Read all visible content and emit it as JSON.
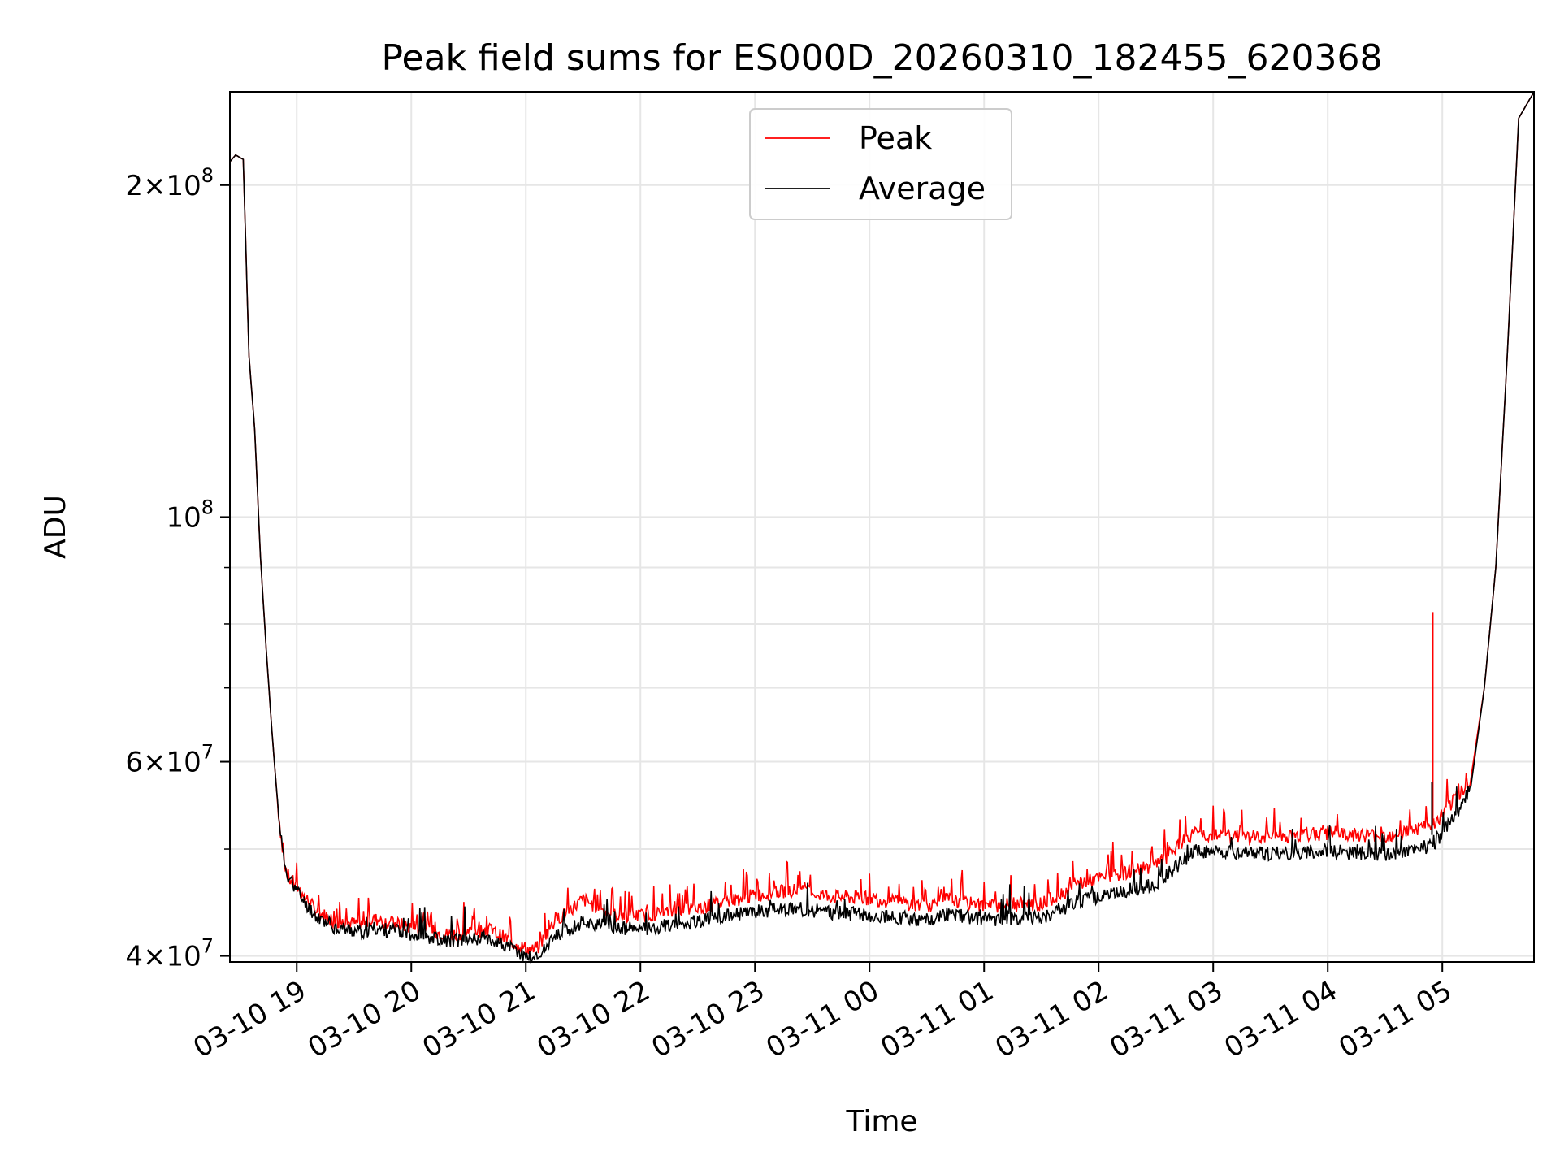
{
  "chart_data": {
    "type": "line",
    "title": "Peak field sums for ES000D_20260310_182455_620368",
    "xlabel": "Time",
    "ylabel": "ADU",
    "yscale": "log",
    "ylim": [
      39500000,
      243000000
    ],
    "xlim": [
      "2026-03-10 18:25",
      "2026-03-11 05:48"
    ],
    "grid": true,
    "legend_position": "top-center",
    "x_ticks": [
      "03-10 19",
      "03-10 20",
      "03-10 21",
      "03-10 22",
      "03-10 23",
      "03-11 00",
      "03-11 01",
      "03-11 02",
      "03-11 03",
      "03-11 04",
      "03-11 05"
    ],
    "y_ticks": [
      {
        "value": 40000000,
        "label": "4×10",
        "exp": "7"
      },
      {
        "value": 60000000,
        "label": "6×10",
        "exp": "7"
      },
      {
        "value": 100000000,
        "label": "10",
        "exp": "8"
      },
      {
        "value": 200000000,
        "label": "2×10",
        "exp": "8"
      }
    ],
    "y_minor_ticks": [
      50000000,
      70000000,
      80000000,
      90000000
    ],
    "colors": {
      "peak": "#ff0000",
      "average": "#000000",
      "grid": "#e6e6e6"
    },
    "series": [
      {
        "name": "Peak",
        "color": "#ff0000",
        "x": [
          "2026-03-10 18:25",
          "2026-03-10 18:28",
          "2026-03-10 18:32",
          "2026-03-10 18:35",
          "2026-03-10 18:38",
          "2026-03-10 18:41",
          "2026-03-10 18:44",
          "2026-03-10 18:47",
          "2026-03-10 18:50",
          "2026-03-10 18:53",
          "2026-03-10 18:56",
          "2026-03-10 18:59",
          "2026-03-10 19:03",
          "2026-03-10 19:10",
          "2026-03-10 19:20",
          "2026-03-10 19:35",
          "2026-03-10 19:40",
          "2026-03-10 20:00",
          "2026-03-10 20:20",
          "2026-03-10 20:40",
          "2026-03-10 21:00",
          "2026-03-10 21:05",
          "2026-03-10 21:15",
          "2026-03-10 21:30",
          "2026-03-10 21:45",
          "2026-03-10 22:00",
          "2026-03-10 22:30",
          "2026-03-10 23:00",
          "2026-03-10 23:20",
          "2026-03-10 23:40",
          "2026-03-11 00:00",
          "2026-03-11 00:30",
          "2026-03-11 00:40",
          "2026-03-11 01:00",
          "2026-03-11 01:30",
          "2026-03-11 01:50",
          "2026-03-11 02:00",
          "2026-03-11 02:30",
          "2026-03-11 02:50",
          "2026-03-11 03:00",
          "2026-03-11 03:30",
          "2026-03-11 04:00",
          "2026-03-11 04:30",
          "2026-03-11 04:55",
          "2026-03-11 05:05",
          "2026-03-11 05:15",
          "2026-03-11 05:22",
          "2026-03-11 05:28",
          "2026-03-11 05:34",
          "2026-03-11 05:40",
          "2026-03-11 05:48"
        ],
        "values": [
          210000000,
          213000000,
          211000000,
          140000000,
          120000000,
          92000000,
          76000000,
          64000000,
          55000000,
          49000000,
          47000000,
          46500000,
          45500000,
          44000000,
          43000000,
          42700000,
          43200000,
          42500000,
          41800000,
          42300000,
          40600000,
          40400000,
          43000000,
          45000000,
          43600000,
          43500000,
          44200000,
          45400000,
          45900000,
          45300000,
          45100000,
          44400000,
          45000000,
          44400000,
          44600000,
          46500000,
          47000000,
          48300000,
          51700000,
          51400000,
          51200000,
          51700000,
          51400000,
          52500000,
          55000000,
          58000000,
          70000000,
          90000000,
          140000000,
          230000000,
          243000000
        ]
      },
      {
        "name": "Average",
        "color": "#000000",
        "x": [
          "2026-03-10 18:25",
          "2026-03-10 18:28",
          "2026-03-10 18:32",
          "2026-03-10 18:35",
          "2026-03-10 18:38",
          "2026-03-10 18:41",
          "2026-03-10 18:44",
          "2026-03-10 18:47",
          "2026-03-10 18:50",
          "2026-03-10 18:53",
          "2026-03-10 18:56",
          "2026-03-10 18:59",
          "2026-03-10 19:03",
          "2026-03-10 19:10",
          "2026-03-10 19:20",
          "2026-03-10 19:35",
          "2026-03-10 19:40",
          "2026-03-10 20:00",
          "2026-03-10 20:20",
          "2026-03-10 20:40",
          "2026-03-10 21:00",
          "2026-03-10 21:05",
          "2026-03-10 21:15",
          "2026-03-10 21:30",
          "2026-03-10 21:45",
          "2026-03-10 22:00",
          "2026-03-10 22:30",
          "2026-03-10 23:00",
          "2026-03-10 23:20",
          "2026-03-10 23:40",
          "2026-03-11 00:00",
          "2026-03-11 00:30",
          "2026-03-11 00:40",
          "2026-03-11 01:00",
          "2026-03-11 01:30",
          "2026-03-11 01:50",
          "2026-03-11 02:00",
          "2026-03-11 02:30",
          "2026-03-11 02:50",
          "2026-03-11 03:00",
          "2026-03-11 03:30",
          "2026-03-11 04:00",
          "2026-03-11 04:30",
          "2026-03-11 04:55",
          "2026-03-11 05:05",
          "2026-03-11 05:15",
          "2026-03-11 05:22",
          "2026-03-11 05:28",
          "2026-03-11 05:34",
          "2026-03-11 05:40",
          "2026-03-11 05:48"
        ],
        "values": [
          210000000,
          213000000,
          211000000,
          140000000,
          120000000,
          92000000,
          76000000,
          64000000,
          55000000,
          49000000,
          47000000,
          46200000,
          45000000,
          43500000,
          42500000,
          42000000,
          42400000,
          41900000,
          41300000,
          41600000,
          40000000,
          39800000,
          41500000,
          43000000,
          42400000,
          42300000,
          43000000,
          43900000,
          44200000,
          43800000,
          43600000,
          43100000,
          43700000,
          43200000,
          43300000,
          44900000,
          45300000,
          46400000,
          49800000,
          49700000,
          49500000,
          49800000,
          49400000,
          50400000,
          53000000,
          57000000,
          70000000,
          90000000,
          140000000,
          230000000,
          243000000
        ]
      }
    ],
    "spikes": [
      {
        "x": "2026-03-11 04:55",
        "value": 82000000,
        "series": "Peak"
      }
    ]
  }
}
